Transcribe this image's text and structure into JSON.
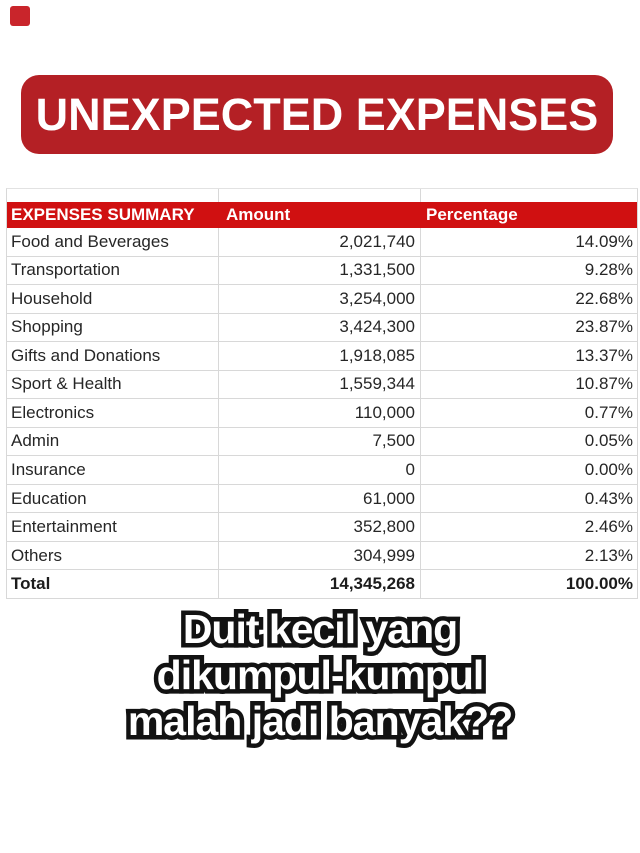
{
  "decor": {
    "corner_square_color": "#c9252b"
  },
  "banner": {
    "title": "UNEXPECTED EXPENSES",
    "bg_color": "#b42025",
    "text_color": "#ffffff"
  },
  "table": {
    "header": {
      "col1": "EXPENSES SUMMARY",
      "col2": "Amount",
      "col3": "Percentage",
      "bg_color": "#d01011",
      "text_color": "#ffffff"
    },
    "rows": [
      {
        "label": "Food and Beverages",
        "amount": "2,021,740",
        "percentage": "14.09%"
      },
      {
        "label": "Transportation",
        "amount": "1,331,500",
        "percentage": "9.28%"
      },
      {
        "label": "Household",
        "amount": "3,254,000",
        "percentage": "22.68%"
      },
      {
        "label": "Shopping",
        "amount": "3,424,300",
        "percentage": "23.87%"
      },
      {
        "label": "Gifts and Donations",
        "amount": "1,918,085",
        "percentage": "13.37%"
      },
      {
        "label": "Sport & Health",
        "amount": "1,559,344",
        "percentage": "10.87%"
      },
      {
        "label": "Electronics",
        "amount": "110,000",
        "percentage": "0.77%"
      },
      {
        "label": "Admin",
        "amount": "7,500",
        "percentage": "0.05%"
      },
      {
        "label": "Insurance",
        "amount": "0",
        "percentage": "0.00%"
      },
      {
        "label": "Education",
        "amount": "61,000",
        "percentage": "0.43%"
      },
      {
        "label": "Entertainment",
        "amount": "352,800",
        "percentage": "2.46%"
      },
      {
        "label": "Others",
        "amount": "304,999",
        "percentage": "2.13%"
      }
    ],
    "total": {
      "label": "Total",
      "amount": "14,345,268",
      "percentage": "100.00%"
    }
  },
  "caption": {
    "line1": "Duit kecil yang",
    "line2": "dikumpul-kumpul",
    "line3": "malah jadi banyak??"
  }
}
